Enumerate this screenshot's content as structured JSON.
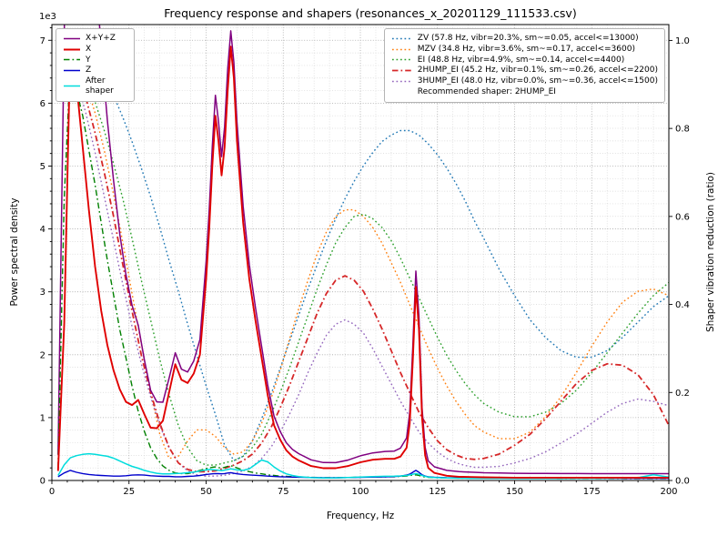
{
  "chart_data": {
    "type": "line",
    "title": "Frequency response and shapers (resonances_x_20201129_111533.csv)",
    "xlabel": "Frequency, Hz",
    "ylabel_left": "Power spectral density",
    "ylabel_right": "Shaper vibration reduction (ratio)",
    "y_left_offset": "1e3",
    "grid": "major+minor",
    "x_range": [
      0,
      200
    ],
    "x_ticks": [
      0,
      25,
      50,
      75,
      100,
      125,
      150,
      175,
      200
    ],
    "y_left_ticks": [
      0,
      1,
      2,
      3,
      4,
      5,
      6,
      7
    ],
    "y_left_max_raw": 7250,
    "y_right_ticks": [
      0.0,
      0.2,
      0.4,
      0.6,
      0.8,
      1.0
    ],
    "y_right_max": 1.036,
    "recommended_label": "Recommended shaper: 2HUMP_EI",
    "psd_x_hz": [
      2,
      4,
      6,
      8,
      10,
      12,
      14,
      16,
      18,
      20,
      22,
      24,
      26,
      28,
      30,
      32,
      34,
      36,
      38,
      40,
      42,
      44,
      46,
      48,
      50,
      51,
      52,
      53,
      54,
      55,
      56,
      57,
      58,
      59,
      60,
      62,
      64,
      66,
      68,
      70,
      72,
      74,
      76,
      78,
      80,
      84,
      88,
      92,
      96,
      100,
      104,
      108,
      111,
      113,
      115,
      116,
      117,
      118,
      119,
      120,
      121,
      122,
      124,
      128,
      132,
      136,
      140,
      145,
      150,
      155,
      160,
      165,
      170,
      175,
      180,
      185,
      190,
      195,
      200
    ],
    "psd_series": [
      {
        "name": "x-y-z-sum",
        "label": "X+Y+Z",
        "color": "#800080",
        "style": "solid",
        "width": 1.5,
        "values": [
          410,
          7120,
          13710,
          12630,
          11210,
          9645,
          8185,
          6880,
          5725,
          4770,
          3920,
          3275,
          2785,
          2470,
          1915,
          1435,
          1250,
          1245,
          1625,
          2030,
          1770,
          1725,
          1900,
          2240,
          3485,
          4300,
          5315,
          6125,
          5713,
          5150,
          5620,
          6543,
          7150,
          6650,
          5705,
          4360,
          3428,
          2752,
          2131,
          1510,
          1024,
          780,
          601,
          494,
          427,
          328,
          285,
          284,
          324,
          392,
          439,
          461,
          467,
          515,
          677,
          1078,
          2115,
          3330,
          2610,
          1155,
          525,
          310,
          217,
          160,
          140,
          131,
          123,
          119,
          114,
          112,
          112,
          110,
          110,
          108,
          108,
          108,
          108,
          108,
          108
        ]
      },
      {
        "name": "x",
        "label": "X",
        "color": "#e00000",
        "style": "solid",
        "width": 1.9,
        "values": [
          150,
          2500,
          6950,
          6300,
          5300,
          4300,
          3400,
          2700,
          2150,
          1750,
          1450,
          1250,
          1200,
          1280,
          1050,
          840,
          830,
          950,
          1400,
          1850,
          1600,
          1550,
          1700,
          2000,
          3200,
          4000,
          5000,
          5800,
          5400,
          4850,
          5300,
          6200,
          6900,
          6400,
          5400,
          4100,
          3200,
          2550,
          1950,
          1350,
          880,
          650,
          480,
          380,
          320,
          230,
          195,
          195,
          230,
          290,
          330,
          345,
          345,
          380,
          520,
          900,
          1900,
          3080,
          2400,
          1000,
          400,
          200,
          120,
          75,
          60,
          55,
          50,
          48,
          45,
          45,
          45,
          45,
          45,
          45,
          45,
          45,
          45,
          45,
          45
        ]
      },
      {
        "name": "y",
        "label": "Y",
        "color": "#008000",
        "style": "dashdot",
        "width": 1.4,
        "values": [
          200,
          4500,
          6600,
          6200,
          5800,
          5250,
          4700,
          4100,
          3500,
          2950,
          2400,
          1950,
          1500,
          1100,
          780,
          520,
          350,
          230,
          160,
          120,
          110,
          110,
          130,
          160,
          190,
          200,
          210,
          215,
          205,
          195,
          210,
          225,
          235,
          220,
          200,
          165,
          140,
          120,
          105,
          90,
          80,
          70,
          65,
          60,
          55,
          50,
          45,
          45,
          48,
          52,
          55,
          58,
          60,
          65,
          72,
          78,
          85,
          90,
          80,
          65,
          55,
          50,
          45,
          40,
          38,
          36,
          35,
          34,
          33,
          32,
          32,
          31,
          31,
          30,
          30,
          30,
          30,
          30,
          30
        ]
      },
      {
        "name": "z",
        "label": "Z",
        "color": "#0000cc",
        "style": "solid",
        "width": 1.4,
        "values": [
          60,
          120,
          160,
          130,
          110,
          95,
          85,
          80,
          75,
          70,
          70,
          75,
          85,
          90,
          85,
          75,
          70,
          65,
          65,
          60,
          60,
          65,
          70,
          80,
          95,
          100,
          105,
          110,
          108,
          105,
          110,
          118,
          125,
          115,
          105,
          95,
          88,
          82,
          76,
          70,
          64,
          60,
          56,
          54,
          52,
          48,
          45,
          44,
          46,
          50,
          54,
          58,
          62,
          70,
          85,
          100,
          130,
          160,
          130,
          90,
          70,
          60,
          52,
          45,
          42,
          40,
          38,
          37,
          36,
          35,
          35,
          34,
          34,
          33,
          33,
          33,
          33,
          33,
          33
        ]
      },
      {
        "name": "after-shaper",
        "label": "After shaper",
        "color": "#00dcdc",
        "style": "solid",
        "width": 1.5,
        "values": [
          80,
          250,
          360,
          395,
          415,
          425,
          415,
          400,
          385,
          355,
          310,
          265,
          225,
          195,
          160,
          135,
          115,
          105,
          105,
          110,
          115,
          125,
          135,
          150,
          170,
          175,
          172,
          168,
          162,
          158,
          165,
          175,
          185,
          178,
          168,
          160,
          185,
          255,
          325,
          295,
          215,
          150,
          105,
          80,
          62,
          45,
          40,
          42,
          48,
          55,
          62,
          66,
          68,
          72,
          80,
          88,
          100,
          110,
          98,
          80,
          65,
          55,
          48,
          40,
          36,
          34,
          33,
          32,
          31,
          31,
          31,
          31,
          32,
          33,
          35,
          38,
          45,
          90,
          55
        ]
      }
    ],
    "shaper_x_hz": [
      2,
      5,
      8,
      11,
      14,
      17,
      20,
      23,
      26,
      29,
      32,
      35,
      38,
      41,
      44,
      47,
      50,
      53,
      56,
      59,
      62,
      65,
      68,
      71,
      74,
      77,
      80,
      83,
      86,
      89,
      92,
      95,
      98,
      101,
      104,
      107,
      110,
      113,
      116,
      119,
      122,
      125,
      128,
      131,
      134,
      137,
      140,
      145,
      150,
      155,
      160,
      165,
      170,
      175,
      180,
      185,
      190,
      195,
      200
    ],
    "shaper_series": [
      {
        "name": "zv",
        "label": "ZV (57.8 Hz, vibr=20.3%, sm~=0.05, accel<=13000)",
        "color": "#1f77b4",
        "style": "dotted",
        "width": 1.4,
        "values": [
          1.0,
          0.995,
          0.985,
          0.97,
          0.945,
          0.915,
          0.875,
          0.825,
          0.77,
          0.71,
          0.645,
          0.575,
          0.5,
          0.43,
          0.355,
          0.285,
          0.215,
          0.15,
          0.08,
          0.045,
          0.055,
          0.09,
          0.14,
          0.195,
          0.255,
          0.315,
          0.375,
          0.435,
          0.49,
          0.545,
          0.595,
          0.64,
          0.68,
          0.715,
          0.745,
          0.77,
          0.785,
          0.795,
          0.795,
          0.785,
          0.765,
          0.74,
          0.71,
          0.675,
          0.635,
          0.59,
          0.55,
          0.48,
          0.42,
          0.365,
          0.325,
          0.295,
          0.28,
          0.28,
          0.295,
          0.325,
          0.36,
          0.395,
          0.42
        ]
      },
      {
        "name": "mzv",
        "label": "MZV (34.8 Hz, vibr=3.6%, sm~=0.17, accel<=3600)",
        "color": "#ff7f0e",
        "style": "dotted",
        "width": 1.4,
        "values": [
          1.0,
          0.985,
          0.955,
          0.905,
          0.835,
          0.75,
          0.65,
          0.54,
          0.425,
          0.31,
          0.2,
          0.105,
          0.05,
          0.055,
          0.09,
          0.115,
          0.115,
          0.1,
          0.075,
          0.06,
          0.065,
          0.09,
          0.13,
          0.185,
          0.25,
          0.32,
          0.39,
          0.455,
          0.515,
          0.565,
          0.6,
          0.615,
          0.615,
          0.6,
          0.575,
          0.54,
          0.495,
          0.45,
          0.4,
          0.35,
          0.3,
          0.255,
          0.215,
          0.18,
          0.15,
          0.125,
          0.11,
          0.095,
          0.095,
          0.11,
          0.145,
          0.19,
          0.245,
          0.305,
          0.36,
          0.405,
          0.43,
          0.435,
          0.42
        ]
      },
      {
        "name": "ei",
        "label": "EI (48.8 Hz, vibr=4.9%, sm~=0.14, accel<=4400)",
        "color": "#2ca02c",
        "style": "dotted",
        "width": 1.4,
        "values": [
          1.0,
          0.985,
          0.955,
          0.915,
          0.86,
          0.795,
          0.72,
          0.64,
          0.55,
          0.455,
          0.365,
          0.275,
          0.195,
          0.125,
          0.075,
          0.045,
          0.035,
          0.035,
          0.04,
          0.045,
          0.055,
          0.075,
          0.105,
          0.15,
          0.2,
          0.255,
          0.315,
          0.375,
          0.435,
          0.49,
          0.54,
          0.575,
          0.6,
          0.605,
          0.595,
          0.575,
          0.545,
          0.505,
          0.46,
          0.415,
          0.37,
          0.325,
          0.285,
          0.25,
          0.22,
          0.195,
          0.175,
          0.155,
          0.145,
          0.145,
          0.155,
          0.175,
          0.205,
          0.245,
          0.29,
          0.335,
          0.38,
          0.42,
          0.45
        ]
      },
      {
        "name": "2hump-ei",
        "label": "2HUMP_EI (45.2 Hz, vibr=0.1%, sm~=0.26, accel<=2200)",
        "color": "#d62728",
        "style": "dashdot",
        "width": 1.8,
        "values": [
          1.0,
          0.975,
          0.93,
          0.87,
          0.79,
          0.7,
          0.6,
          0.49,
          0.385,
          0.285,
          0.2,
          0.13,
          0.075,
          0.04,
          0.025,
          0.02,
          0.02,
          0.022,
          0.028,
          0.035,
          0.045,
          0.06,
          0.085,
          0.12,
          0.165,
          0.215,
          0.27,
          0.325,
          0.38,
          0.425,
          0.455,
          0.465,
          0.455,
          0.43,
          0.39,
          0.345,
          0.295,
          0.245,
          0.2,
          0.155,
          0.12,
          0.09,
          0.07,
          0.058,
          0.05,
          0.048,
          0.05,
          0.06,
          0.08,
          0.105,
          0.14,
          0.18,
          0.22,
          0.25,
          0.265,
          0.262,
          0.24,
          0.195,
          0.125
        ]
      },
      {
        "name": "3hump-ei",
        "label": "3HUMP_EI (48.0 Hz, vibr=0.0%, sm~=0.36, accel<=1500)",
        "color": "#9467bd",
        "style": "dotted",
        "width": 1.4,
        "values": [
          1.0,
          0.965,
          0.91,
          0.835,
          0.745,
          0.645,
          0.545,
          0.445,
          0.35,
          0.265,
          0.19,
          0.125,
          0.075,
          0.04,
          0.022,
          0.013,
          0.01,
          0.01,
          0.012,
          0.016,
          0.022,
          0.032,
          0.05,
          0.075,
          0.11,
          0.15,
          0.195,
          0.245,
          0.29,
          0.33,
          0.355,
          0.365,
          0.355,
          0.335,
          0.3,
          0.26,
          0.22,
          0.18,
          0.145,
          0.11,
          0.085,
          0.065,
          0.05,
          0.04,
          0.034,
          0.03,
          0.03,
          0.032,
          0.04,
          0.05,
          0.065,
          0.085,
          0.105,
          0.13,
          0.155,
          0.175,
          0.185,
          0.18,
          0.17
        ]
      }
    ]
  }
}
